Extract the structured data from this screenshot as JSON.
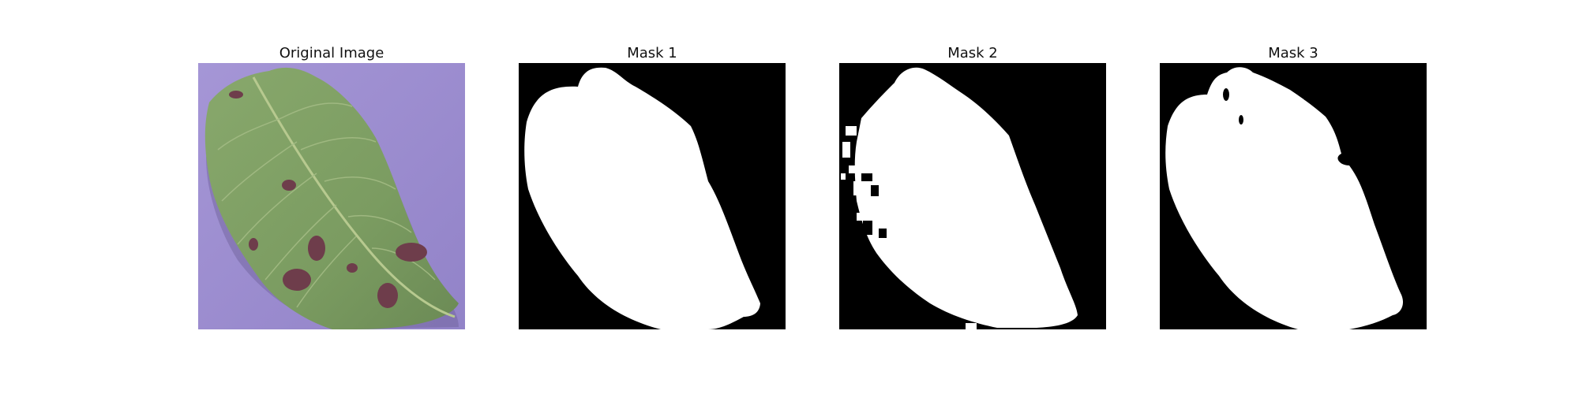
{
  "panels": [
    {
      "title": "Original Image"
    },
    {
      "title": "Mask 1"
    },
    {
      "title": "Mask 2"
    },
    {
      "title": "Mask 3"
    }
  ],
  "colors": {
    "background_purple": "#9d8fd0",
    "leaf_green": "#7f9d63",
    "lesion_brown": "#6d3f4a",
    "mask_black": "#000000",
    "mask_white": "#ffffff"
  }
}
